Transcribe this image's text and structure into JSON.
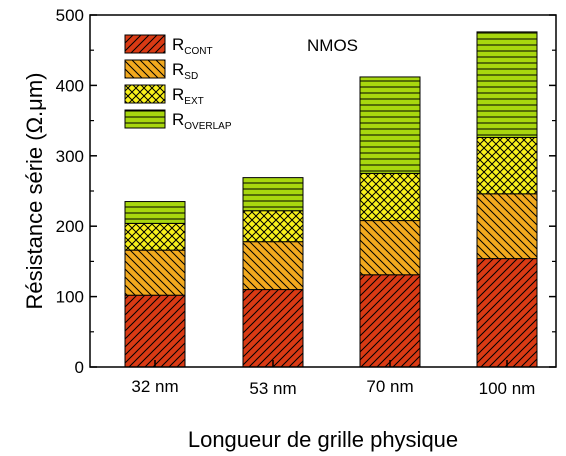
{
  "chart_data": {
    "type": "bar",
    "stacked": true,
    "categories": [
      "32 nm",
      "53 nm",
      "70 nm",
      "100 nm"
    ],
    "series": [
      {
        "name": "R",
        "subscript": "CONT",
        "color": "#d93a14",
        "pattern": "diagonal-forward",
        "values": [
          102,
          110,
          131,
          154
        ]
      },
      {
        "name": "R",
        "subscript": "SD",
        "color": "#f2a91e",
        "pattern": "diagonal-backward",
        "values": [
          64,
          68,
          77,
          92
        ]
      },
      {
        "name": "R",
        "subscript": "EXT",
        "color": "#f8f01a",
        "pattern": "crosshatch",
        "values": [
          38,
          44,
          67,
          80
        ]
      },
      {
        "name": "R",
        "subscript": "OVERLAP",
        "color": "#a8d70e",
        "pattern": "horizontal",
        "values": [
          31,
          47,
          137,
          150
        ]
      }
    ],
    "annotation": "NMOS",
    "xlabel": "Longueur de grille physique",
    "ylabel": "Résistance série (Ω.μm)",
    "ylim": [
      0,
      500
    ],
    "yticks": [
      0,
      100,
      200,
      300,
      400,
      500
    ],
    "grid": false,
    "legend_position": "top-left"
  }
}
